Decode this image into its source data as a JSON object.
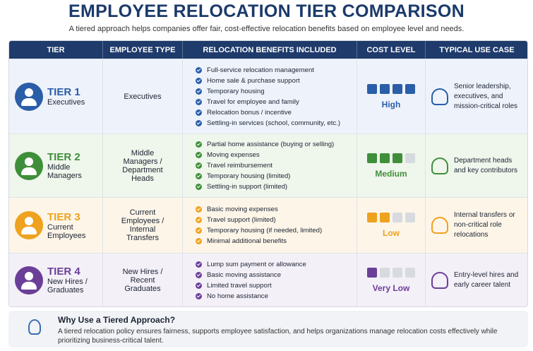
{
  "header": {
    "title": "EMPLOYEE RELOCATION TIER COMPARISON",
    "subtitle": "A tiered approach helps companies offer fair, cost-effective relocation benefits based on employee level and needs."
  },
  "table": {
    "columns": [
      "TIER",
      "EMPLOYEE TYPE",
      "RELOCATION BENEFITS INCLUDED",
      "COST LEVEL",
      "TYPICAL USE CASE"
    ],
    "cost_scale_max": 4,
    "rows": [
      {
        "tier": "TIER 1",
        "tier_group": "Executives",
        "employee_type": "Executives",
        "benefits": [
          "Full-service relocation management",
          "Home sale & purchase support",
          "Temporary housing",
          "Travel for employee and family",
          "Relocation bonus / incentive",
          "Settling-in services (school, community, etc.)"
        ],
        "cost_level": "High",
        "cost_filled": 4,
        "use_case": "Senior leadership, executives, and mission-critical roles",
        "color": "#2a5ea8"
      },
      {
        "tier": "TIER 2",
        "tier_group": "Middle Managers",
        "employee_type": "Middle Managers / Department Heads",
        "benefits": [
          "Partial home assistance (buying or selling)",
          "Moving expenses",
          "Travel reimbursement",
          "Temporary housing (limited)",
          "Settling-in support (limited)"
        ],
        "cost_level": "Medium",
        "cost_filled": 3,
        "use_case": "Department heads and key contributors",
        "color": "#3f8f3a"
      },
      {
        "tier": "TIER 3",
        "tier_group": "Current Employees",
        "employee_type": "Current Employees / Internal Transfers",
        "benefits": [
          "Basic moving expenses",
          "Travel support (limited)",
          "Temporary housing (if needed, limited)",
          "Minimal additional benefits"
        ],
        "cost_level": "Low",
        "cost_filled": 2,
        "use_case": "Internal transfers or non-critical role relocations",
        "color": "#eea21f"
      },
      {
        "tier": "TIER 4",
        "tier_group": "New Hires / Graduates",
        "employee_type": "New Hires / Recent Graduates",
        "benefits": [
          "Lump sum payment or allowance",
          "Basic moving assistance",
          "Limited travel support",
          "No home assistance"
        ],
        "cost_level": "Very Low",
        "cost_filled": 1,
        "use_case": "Entry-level hires and early career talent",
        "color": "#6b3f98"
      }
    ]
  },
  "footer": {
    "title": "Why Use a Tiered Approach?",
    "text": "A tiered relocation policy ensures fairness, supports employee satisfaction, and helps organizations manage relocation costs effectively while prioritizing business-critical talent."
  }
}
